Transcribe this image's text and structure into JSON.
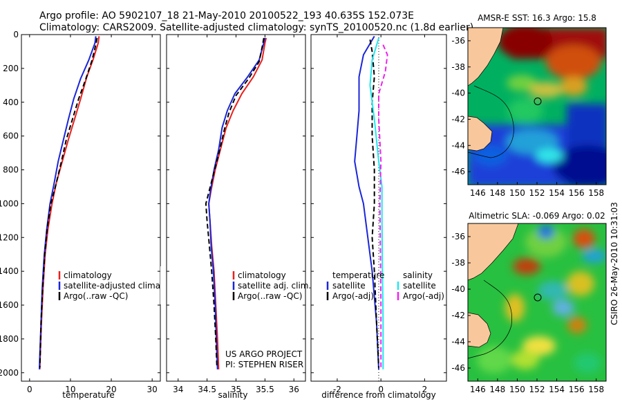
{
  "title": {
    "line1": "Argo profile: AO 5902107_18 21-May-2010 20100522_193 40.635S 152.073E",
    "line2": "Climatology: CARS2009. Satellite-adjusted climatology: synTS_20100520.nc (1.8d earlier)"
  },
  "credits": {
    "project": "US ARGO PROJECT",
    "pi": "PI: STEPHEN RISER",
    "csiro": "CSIRO 26-May-2010 10:31:03"
  },
  "colors": {
    "red": "#e8201c",
    "blue": "#1a25d8",
    "black": "#000000",
    "cyan": "#22e6ee",
    "magenta": "#ee22ee"
  },
  "chart_data": [
    {
      "type": "line",
      "id": "temperature",
      "xlabel": "temperature",
      "xlim": [
        -2,
        32
      ],
      "ylim": [
        0,
        2050
      ],
      "xticks": [
        0,
        10,
        20,
        30
      ],
      "yticks": [
        0,
        200,
        400,
        600,
        800,
        1000,
        1200,
        1400,
        1600,
        1800,
        2000
      ],
      "legend": [
        "climatology",
        "satellite-adjusted climatology",
        "Argo(..raw -QC)"
      ],
      "series": [
        {
          "name": "climatology",
          "color": "red",
          "dash": "",
          "points": [
            [
              17.0,
              10
            ],
            [
              16.8,
              50
            ],
            [
              15.5,
              150
            ],
            [
              14.0,
              250
            ],
            [
              12.5,
              380
            ],
            [
              11.0,
              500
            ],
            [
              9.5,
              620
            ],
            [
              8.0,
              750
            ],
            [
              6.5,
              880
            ],
            [
              5.5,
              1000
            ],
            [
              4.5,
              1150
            ],
            [
              3.8,
              1300
            ],
            [
              3.3,
              1500
            ],
            [
              2.9,
              1700
            ],
            [
              2.6,
              1900
            ],
            [
              2.5,
              1980
            ]
          ]
        },
        {
          "name": "satellite-adjusted climatology",
          "color": "blue",
          "dash": "",
          "points": [
            [
              16.2,
              10
            ],
            [
              16.0,
              50
            ],
            [
              14.5,
              150
            ],
            [
              12.5,
              260
            ],
            [
              10.8,
              380
            ],
            [
              9.5,
              500
            ],
            [
              8.3,
              620
            ],
            [
              7.0,
              750
            ],
            [
              6.0,
              880
            ],
            [
              5.0,
              1000
            ],
            [
              4.2,
              1150
            ],
            [
              3.6,
              1300
            ],
            [
              3.1,
              1500
            ],
            [
              2.8,
              1700
            ],
            [
              2.5,
              1900
            ],
            [
              2.4,
              1980
            ]
          ]
        },
        {
          "name": "Argo(..raw -QC)",
          "color": "black",
          "dash": "7,4",
          "points": [
            [
              16.5,
              20
            ],
            [
              16.3,
              50
            ],
            [
              15.3,
              150
            ],
            [
              13.8,
              260
            ],
            [
              12.0,
              380
            ],
            [
              10.5,
              500
            ],
            [
              9.0,
              620
            ],
            [
              7.8,
              750
            ],
            [
              6.5,
              880
            ],
            [
              5.2,
              1000
            ],
            [
              4.3,
              1150
            ],
            [
              3.7,
              1300
            ],
            [
              3.2,
              1500
            ],
            [
              2.8,
              1700
            ],
            [
              2.6,
              1900
            ],
            [
              2.5,
              1970
            ]
          ]
        }
      ]
    },
    {
      "type": "line",
      "id": "salinity",
      "xlabel": "salinity",
      "xlim": [
        33.8,
        36.2
      ],
      "ylim": [
        0,
        2050
      ],
      "xticks": [
        34,
        34.5,
        35,
        35.5,
        36
      ],
      "yticks": [
        0,
        200,
        400,
        600,
        800,
        1000,
        1200,
        1400,
        1600,
        1800,
        2000
      ],
      "legend": [
        "climatology",
        "satellite adj. clim.",
        "Argo(..raw -QC)"
      ],
      "series": [
        {
          "name": "climatology",
          "color": "red",
          "dash": "",
          "points": [
            [
              35.52,
              20
            ],
            [
              35.5,
              50
            ],
            [
              35.45,
              150
            ],
            [
              35.3,
              250
            ],
            [
              35.1,
              350
            ],
            [
              34.95,
              450
            ],
            [
              34.83,
              550
            ],
            [
              34.73,
              680
            ],
            [
              34.64,
              800
            ],
            [
              34.57,
              920
            ],
            [
              34.53,
              1000
            ],
            [
              34.55,
              1100
            ],
            [
              34.58,
              1250
            ],
            [
              34.62,
              1400
            ],
            [
              34.65,
              1600
            ],
            [
              34.68,
              1800
            ],
            [
              34.7,
              1980
            ]
          ]
        },
        {
          "name": "satellite adj. clim.",
          "color": "blue",
          "dash": "",
          "points": [
            [
              35.5,
              20
            ],
            [
              35.47,
              60
            ],
            [
              35.4,
              150
            ],
            [
              35.2,
              250
            ],
            [
              34.98,
              350
            ],
            [
              34.85,
              450
            ],
            [
              34.76,
              550
            ],
            [
              34.7,
              680
            ],
            [
              34.62,
              800
            ],
            [
              34.56,
              920
            ],
            [
              34.53,
              1000
            ],
            [
              34.55,
              1100
            ],
            [
              34.57,
              1250
            ],
            [
              34.61,
              1400
            ],
            [
              34.64,
              1600
            ],
            [
              34.66,
              1800
            ],
            [
              34.68,
              1980
            ]
          ]
        },
        {
          "name": "Argo(..raw -QC)",
          "color": "black",
          "dash": "7,4",
          "points": [
            [
              35.48,
              20
            ],
            [
              35.46,
              60
            ],
            [
              35.4,
              160
            ],
            [
              35.22,
              260
            ],
            [
              35.0,
              360
            ],
            [
              34.88,
              460
            ],
            [
              34.8,
              560
            ],
            [
              34.72,
              680
            ],
            [
              34.63,
              800
            ],
            [
              34.54,
              920
            ],
            [
              34.48,
              1000
            ],
            [
              34.5,
              1100
            ],
            [
              34.54,
              1250
            ],
            [
              34.58,
              1400
            ],
            [
              34.62,
              1600
            ],
            [
              34.65,
              1800
            ],
            [
              34.67,
              1970
            ]
          ]
        }
      ]
    },
    {
      "type": "line",
      "id": "difference",
      "xlabel": "difference from climatology",
      "xlim": [
        -3.2,
        3.0
      ],
      "ylim": [
        0,
        2050
      ],
      "xticks": [
        -2,
        0,
        2
      ],
      "yticks": [
        0,
        200,
        400,
        600,
        800,
        1000,
        1200,
        1400,
        1600,
        1800,
        2000
      ],
      "legend_left_title": "temperature",
      "legend_right_title": "salinity",
      "legend": [
        "satellite",
        "Argo(-adj)",
        "satellite",
        "Argo(-adj)"
      ],
      "series": [
        {
          "name": "temperature satellite",
          "color": "blue",
          "dash": "",
          "points": [
            [
              -0.3,
              10
            ],
            [
              -0.8,
              120
            ],
            [
              -1.0,
              250
            ],
            [
              -1.0,
              450
            ],
            [
              -1.1,
              600
            ],
            [
              -1.2,
              750
            ],
            [
              -1.0,
              900
            ],
            [
              -0.8,
              1000
            ],
            [
              -0.6,
              1200
            ],
            [
              -0.4,
              1400
            ],
            [
              -0.2,
              1700
            ],
            [
              -0.1,
              1980
            ]
          ]
        },
        {
          "name": "temperature Argo(-adj)",
          "color": "black",
          "dash": "7,4",
          "points": [
            [
              -0.5,
              30
            ],
            [
              -0.4,
              100
            ],
            [
              -0.3,
              250
            ],
            [
              -0.4,
              400
            ],
            [
              -0.4,
              600
            ],
            [
              -0.3,
              800
            ],
            [
              -0.3,
              1000
            ],
            [
              -0.4,
              1200
            ],
            [
              -0.3,
              1400
            ],
            [
              -0.2,
              1700
            ],
            [
              -0.1,
              1970
            ]
          ]
        },
        {
          "name": "salinity satellite",
          "color": "cyan",
          "dash": "",
          "points": [
            [
              -0.1,
              20
            ],
            [
              -0.4,
              150
            ],
            [
              -0.5,
              300
            ],
            [
              -0.3,
              500
            ],
            [
              -0.1,
              750
            ],
            [
              0.05,
              900
            ],
            [
              0.05,
              1100
            ],
            [
              0.07,
              1400
            ],
            [
              0.1,
              1700
            ],
            [
              0.1,
              1980
            ]
          ]
        },
        {
          "name": "salinity Argo(-adj)",
          "color": "magenta",
          "dash": "7,4",
          "points": [
            [
              0.1,
              60
            ],
            [
              0.3,
              120
            ],
            [
              0.2,
              220
            ],
            [
              -0.1,
              350
            ],
            [
              -0.1,
              500
            ],
            [
              0.0,
              750
            ],
            [
              -0.05,
              1000
            ],
            [
              -0.02,
              1300
            ],
            [
              0.0,
              1600
            ],
            [
              0.0,
              1970
            ]
          ]
        }
      ]
    },
    {
      "type": "heatmap",
      "id": "sst_map",
      "title": "AMSR-E SST: 16.3 Argo: 15.8",
      "xlim": [
        145,
        159
      ],
      "ylim": [
        -47,
        -35
      ],
      "xticks": [
        146,
        148,
        150,
        152,
        154,
        156,
        158
      ],
      "yticks": [
        -36,
        -38,
        -40,
        -42,
        -44,
        -46
      ],
      "marker": [
        152.07,
        -40.63
      ]
    },
    {
      "type": "heatmap",
      "id": "sla_map",
      "title": "Altimetric SLA: -0.069 Argo: 0.02",
      "xlim": [
        145,
        159
      ],
      "ylim": [
        -47,
        -35
      ],
      "xticks": [
        146,
        148,
        150,
        152,
        154,
        156,
        158
      ],
      "yticks": [
        -36,
        -38,
        -40,
        -42,
        -44,
        -46
      ],
      "marker": [
        152.07,
        -40.63
      ]
    }
  ]
}
